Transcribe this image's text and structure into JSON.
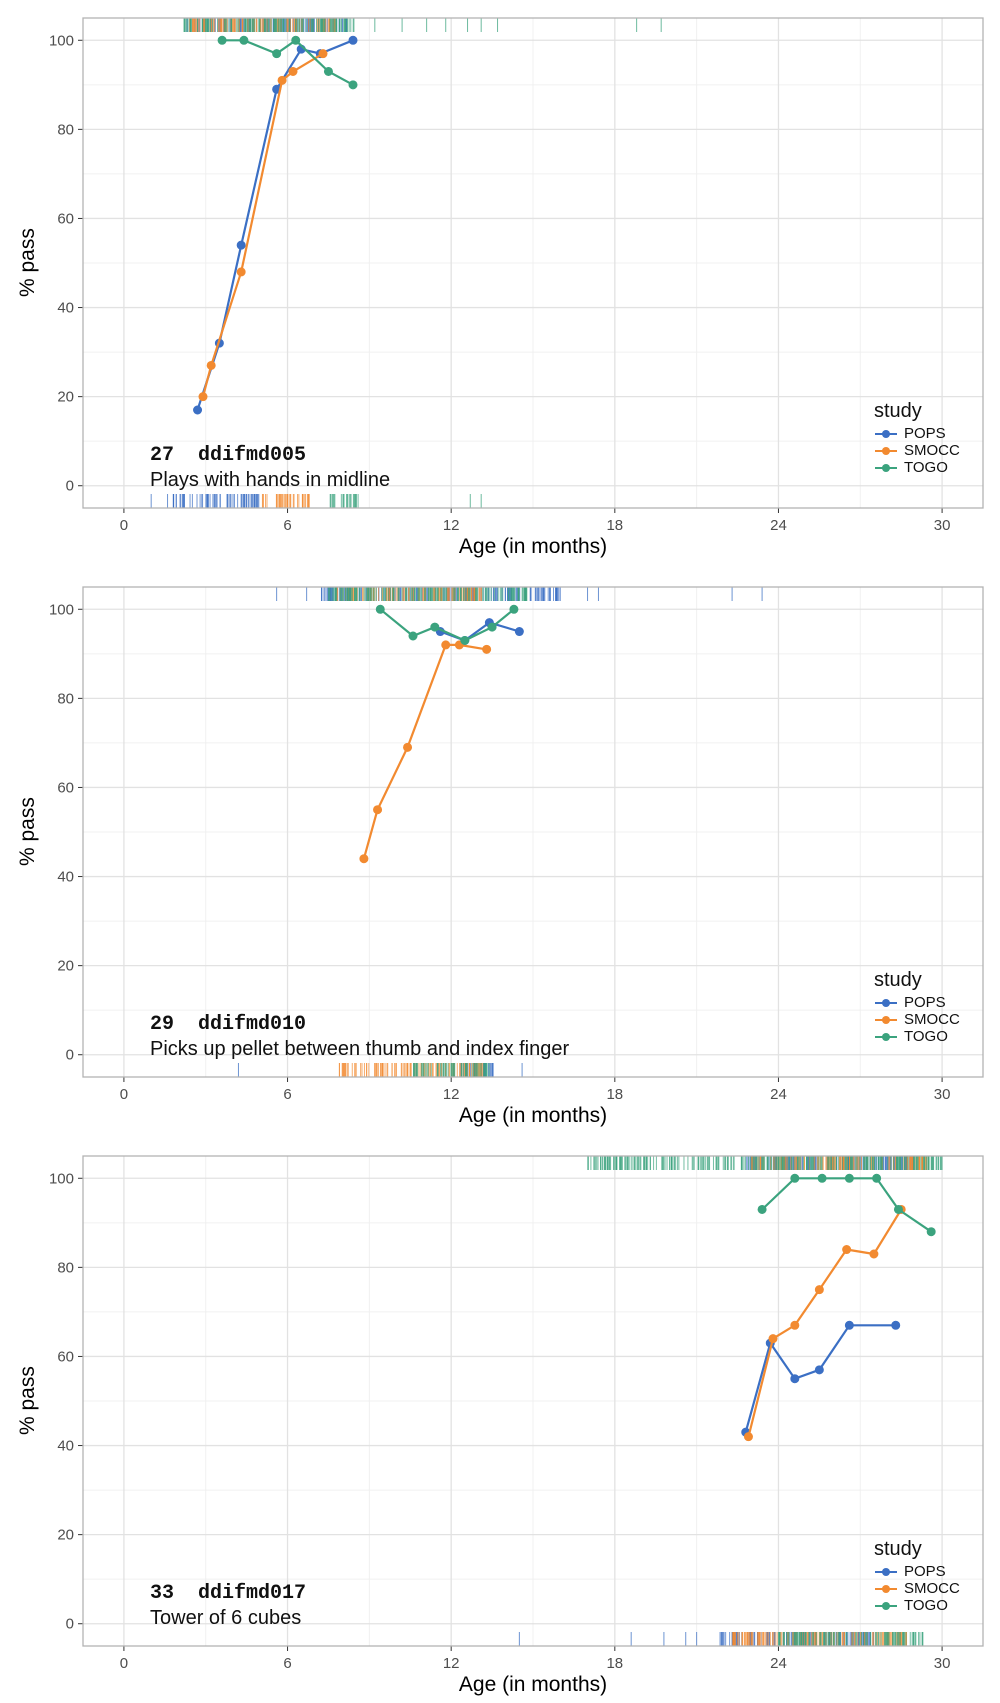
{
  "x_axis_label": "Age (in months)",
  "y_axis_label": "% pass",
  "legend_title": "study",
  "colors": {
    "POPS": "#3B6FC4",
    "SMOCC": "#F28A30",
    "TOGO": "#3BA37E"
  },
  "chart_data": [
    {
      "type": "line",
      "item_number": "27",
      "item_code": "ddifmd005",
      "item_label": "Plays with hands in midline",
      "xlabel": "Age (in months)",
      "ylabel": "% pass",
      "xlim": [
        -1.5,
        31.5
      ],
      "ylim": [
        -5,
        105
      ],
      "x_ticks": [
        0,
        6,
        12,
        18,
        24,
        30
      ],
      "y_ticks": [
        0,
        20,
        40,
        60,
        80,
        100
      ],
      "legend": [
        "POPS",
        "SMOCC",
        "TOGO"
      ],
      "series": [
        {
          "name": "POPS",
          "x": [
            2.7,
            3.5,
            4.3,
            5.6,
            6.5,
            7.2,
            8.4
          ],
          "y": [
            17,
            32,
            54,
            89,
            98,
            97,
            100
          ]
        },
        {
          "name": "SMOCC",
          "x": [
            2.9,
            3.2,
            4.3,
            5.8,
            6.2,
            7.3
          ],
          "y": [
            20,
            27,
            48,
            91,
            93,
            97
          ]
        },
        {
          "name": "TOGO",
          "x": [
            3.6,
            4.4,
            5.6,
            6.3,
            7.5,
            8.4
          ],
          "y": [
            100,
            100,
            97,
            100,
            93,
            90
          ]
        }
      ],
      "rug_top": {
        "POPS": [
          2.3,
          8.2
        ],
        "SMOCC": [
          2.4,
          7.8
        ],
        "TOGO": [
          2.2,
          8.5
        ],
        "TOGO_extra": [
          9.2,
          10.2,
          11.1,
          11.8,
          12.6,
          13.1,
          13.7,
          18.8,
          19.7
        ]
      },
      "rug_bottom": {
        "POPS": [
          1.8,
          5.0
        ],
        "SMOCC": [
          5.0,
          6.8
        ],
        "TOGO": [
          7.5,
          8.6
        ],
        "TOGO_extra": [
          12.7,
          13.1
        ],
        "POPS_extra": [
          1.0,
          1.6
        ]
      }
    },
    {
      "type": "line",
      "item_number": "29",
      "item_code": "ddifmd010",
      "item_label": "Picks up pellet between thumb and index finger",
      "xlabel": "Age (in months)",
      "ylabel": "% pass",
      "xlim": [
        -1.5,
        31.5
      ],
      "ylim": [
        -5,
        105
      ],
      "x_ticks": [
        0,
        6,
        12,
        18,
        24,
        30
      ],
      "y_ticks": [
        0,
        20,
        40,
        60,
        80,
        100
      ],
      "legend": [
        "POPS",
        "SMOCC",
        "TOGO"
      ],
      "series": [
        {
          "name": "POPS",
          "x": [
            11.6,
            12.5,
            13.4,
            14.5
          ],
          "y": [
            95,
            93,
            97,
            95
          ]
        },
        {
          "name": "SMOCC",
          "x": [
            8.8,
            9.3,
            10.4,
            11.8,
            12.3,
            13.3
          ],
          "y": [
            44,
            55,
            69,
            92,
            92,
            91
          ]
        },
        {
          "name": "TOGO",
          "x": [
            9.4,
            10.6,
            11.4,
            12.5,
            13.5,
            14.3
          ],
          "y": [
            100,
            94,
            96,
            93,
            96,
            100
          ]
        }
      ],
      "rug_top": {
        "POPS": [
          7.2,
          16.0
        ],
        "SMOCC": [
          7.8,
          13.2
        ],
        "TOGO": [
          7.5,
          14.8
        ],
        "POPS_extra": [
          5.6,
          6.7,
          17.0,
          17.4,
          22.3,
          23.4
        ]
      },
      "rug_bottom": {
        "POPS": [
          12.3,
          13.6
        ],
        "SMOCC": [
          7.9,
          13.2
        ],
        "TOGO": [
          10.5,
          13.4
        ],
        "POPS_extra": [
          4.2,
          14.6
        ]
      }
    },
    {
      "type": "line",
      "item_number": "33",
      "item_code": "ddifmd017",
      "item_label": "Tower of 6 cubes",
      "xlabel": "Age (in months)",
      "ylabel": "% pass",
      "xlim": [
        -1.5,
        31.5
      ],
      "ylim": [
        -5,
        105
      ],
      "x_ticks": [
        0,
        6,
        12,
        18,
        24,
        30
      ],
      "y_ticks": [
        0,
        20,
        40,
        60,
        80,
        100
      ],
      "legend": [
        "POPS",
        "SMOCC",
        "TOGO"
      ],
      "series": [
        {
          "name": "POPS",
          "x": [
            22.8,
            23.7,
            24.6,
            25.5,
            26.6,
            28.3
          ],
          "y": [
            43,
            63,
            55,
            57,
            67,
            67
          ]
        },
        {
          "name": "SMOCC",
          "x": [
            22.9,
            23.8,
            24.6,
            25.5,
            26.5,
            27.5,
            28.5
          ],
          "y": [
            42,
            64,
            67,
            75,
            84,
            83,
            93
          ]
        },
        {
          "name": "TOGO",
          "x": [
            23.4,
            24.6,
            25.6,
            26.6,
            27.6,
            28.4,
            29.6
          ],
          "y": [
            93,
            100,
            100,
            100,
            100,
            93,
            88
          ]
        }
      ],
      "rug_top": {
        "POPS": [
          22.8,
          29.0
        ],
        "SMOCC": [
          23.0,
          29.5
        ],
        "TOGO": [
          17.0,
          30.0
        ]
      },
      "rug_bottom": {
        "POPS": [
          21.8,
          27.5
        ],
        "SMOCC": [
          22.3,
          28.7
        ],
        "TOGO": [
          24.0,
          29.3
        ],
        "POPS_extra": [
          14.5,
          18.6,
          19.8,
          20.6,
          21.0
        ]
      }
    }
  ]
}
